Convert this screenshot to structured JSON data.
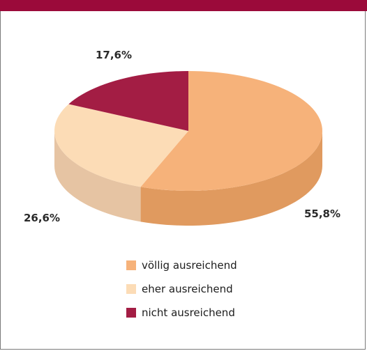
{
  "colors": {
    "header_bar": "#9b0a3a",
    "voellig_top": "#f6b27a",
    "voellig_side": "#e09a5f",
    "eher_top": "#fcdcb6",
    "eher_side": "#e6c4a3",
    "nicht_top": "#a31d44",
    "nicht_side": "#7e1433"
  },
  "chart_data": {
    "type": "pie",
    "three_d": true,
    "categories": [
      "völlig ausreichend",
      "eher ausreichend",
      "nicht ausreichend"
    ],
    "values": [
      55.8,
      26.6,
      17.6
    ],
    "data_labels": [
      "55,8%",
      "26,6%",
      "17,6%"
    ],
    "legend": {
      "position": "bottom",
      "entries": [
        "völlig ausreichend",
        "eher ausreichend",
        "nicht ausreichend"
      ]
    }
  }
}
